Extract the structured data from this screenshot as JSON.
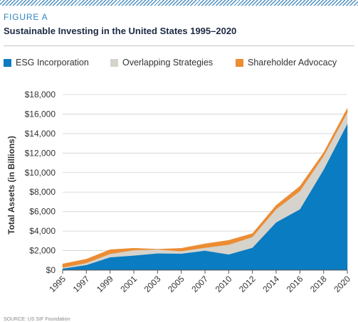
{
  "header": {
    "figure_label": "FIGURE A",
    "title": "Sustainable Investing in the United States 1995–2020",
    "source": "SOURCE: US SIF Foundation"
  },
  "chart_data": {
    "type": "area",
    "stacked": true,
    "title": "Sustainable Investing in the United States 1995–2020",
    "xlabel": "",
    "ylabel": "Total Assets (in Billions)",
    "x": [
      "1995",
      "1997",
      "1999",
      "2001",
      "2003",
      "2005",
      "2007",
      "2010",
      "2012",
      "2014",
      "2016",
      "2018",
      "2020"
    ],
    "series": [
      {
        "name": "ESG Incorporation",
        "color": "#0a7cc1",
        "values": [
          160,
          530,
          1320,
          1500,
          1720,
          1690,
          2000,
          1610,
          2300,
          4900,
          6240,
          10300,
          15000
        ]
      },
      {
        "name": "Overlapping Strategies",
        "color": "#d6d3cc",
        "values": [
          100,
          200,
          350,
          550,
          400,
          250,
          300,
          1000,
          1100,
          1350,
          1860,
          1400,
          1150
        ]
      },
      {
        "name": "Shareholder Advocacy",
        "color": "#ec8c33",
        "values": [
          380,
          400,
          430,
          200,
          30,
          300,
          400,
          450,
          350,
          400,
          500,
          350,
          450
        ]
      }
    ],
    "ylim": [
      0,
      18000
    ],
    "y_ticks": [
      "$0",
      "$2,000",
      "$4,000",
      "$6,000",
      "$8,000",
      "$10,000",
      "$12,000",
      "$14,000",
      "$16,000",
      "$18,000"
    ],
    "grid": true,
    "legend_position": "top"
  }
}
